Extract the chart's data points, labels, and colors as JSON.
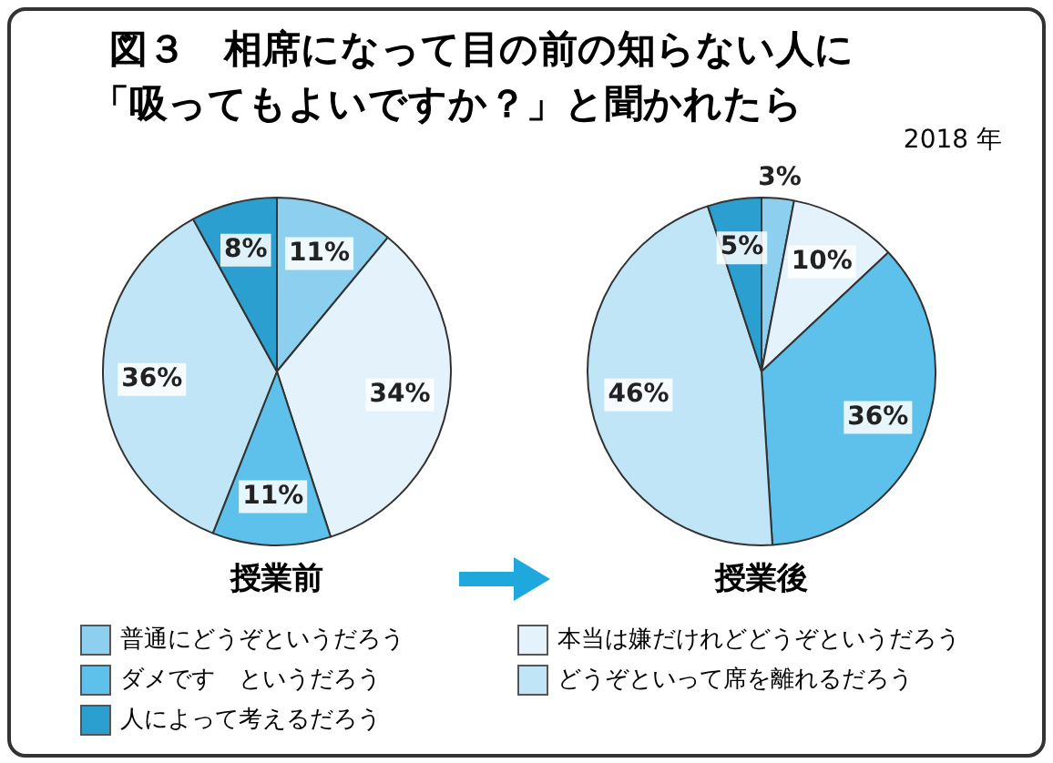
{
  "chart_data": [
    {
      "type": "pie",
      "title": "授業前",
      "annotations": [
        "図３　相席になって目の前の知らない人に",
        "「吸ってもよいですか？」と聞かれたら",
        "2018 年"
      ],
      "legend": "bottom",
      "categories": [
        "普通にどうぞというだろう",
        "本当は嫌だけれどどうぞというだろう",
        "ダメです　というだろう",
        "どうぞといって席を離れるだろう",
        "人によって考えるだろう"
      ],
      "values": [
        11,
        34,
        11,
        36,
        8
      ],
      "value_labels": [
        "11%",
        "34%",
        "11%",
        "36%",
        "8%"
      ],
      "colors": [
        "#8ccfee",
        "#e4f3fb",
        "#5dc1ec",
        "#bfe5f6",
        "#2a9fd0"
      ]
    },
    {
      "type": "pie",
      "title": "授業後",
      "categories": [
        null,
        null,
        null,
        null,
        null
      ],
      "values": [
        3,
        10,
        36,
        46,
        5
      ],
      "value_labels": [
        "3%",
        "10%",
        "36%",
        "46%",
        "5%"
      ],
      "colors": [
        "#8ccfee",
        "#e4f3fb",
        "#5dc1ec",
        "#bfe5f6",
        "#2a9fd0"
      ]
    }
  ]
}
